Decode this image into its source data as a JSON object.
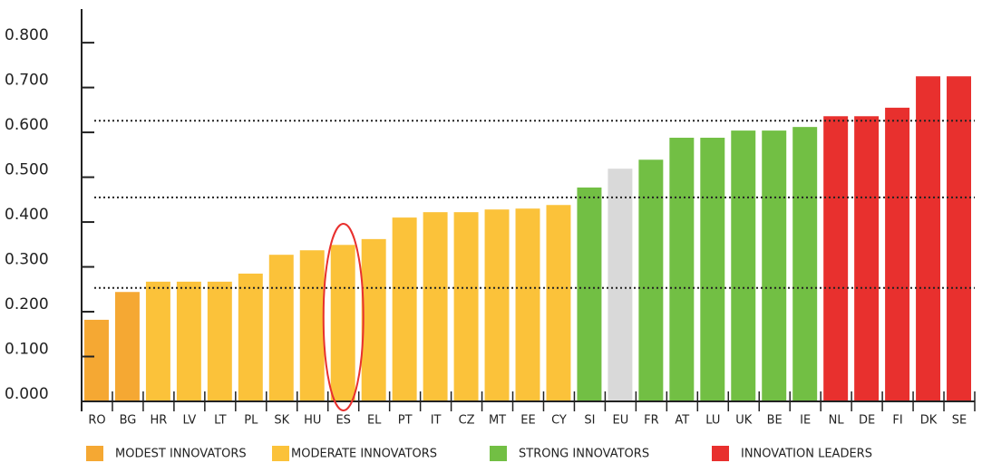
{
  "chart_data": {
    "type": "bar",
    "categories": [
      "RO",
      "BG",
      "HR",
      "LV",
      "LT",
      "PL",
      "SK",
      "HU",
      "ES",
      "EL",
      "PT",
      "IT",
      "CZ",
      "MT",
      "EE",
      "CY",
      "SI",
      "EU",
      "FR",
      "AT",
      "LU",
      "UK",
      "BE",
      "IE",
      "NL",
      "DE",
      "FI",
      "DK",
      "SE"
    ],
    "values": [
      0.182,
      0.244,
      0.267,
      0.267,
      0.267,
      0.285,
      0.327,
      0.337,
      0.349,
      0.362,
      0.41,
      0.422,
      0.422,
      0.428,
      0.43,
      0.438,
      0.477,
      0.519,
      0.539,
      0.588,
      0.588,
      0.604,
      0.604,
      0.612,
      0.636,
      0.636,
      0.655,
      0.725,
      0.725
    ],
    "colors": [
      "#f5a833",
      "#f5a833",
      "#fbc23a",
      "#fbc23a",
      "#fbc23a",
      "#fbc23a",
      "#fbc23a",
      "#fbc23a",
      "#fbc23a",
      "#fbc23a",
      "#fbc23a",
      "#fbc23a",
      "#fbc23a",
      "#fbc23a",
      "#fbc23a",
      "#fbc23a",
      "#72bf44",
      "#d9d9d9",
      "#72bf44",
      "#72bf44",
      "#72bf44",
      "#72bf44",
      "#72bf44",
      "#72bf44",
      "#e8302e",
      "#e8302e",
      "#e8302e",
      "#e8302e",
      "#e8302e"
    ],
    "ylim": [
      0,
      0.875
    ],
    "yticks": [
      {
        "value": 0,
        "label": "0.000"
      },
      {
        "value": 0.1,
        "label": "0.100"
      },
      {
        "value": 0.2,
        "label": "0.200"
      },
      {
        "value": 0.3,
        "label": "0.300"
      },
      {
        "value": 0.4,
        "label": "0.400"
      },
      {
        "value": 0.5,
        "label": "0.500"
      },
      {
        "value": 0.6,
        "label": "0.600"
      },
      {
        "value": 0.7,
        "label": "0.700"
      },
      {
        "value": 0.8,
        "label": "0.800"
      }
    ],
    "reference_lines": [
      0.626,
      0.455,
      0.253
    ],
    "highlight_category": "ES",
    "legend": [
      {
        "name": "MODEST INNOVATORS",
        "color": "#f5a833"
      },
      {
        "name": "MODERATE INNOVATORS",
        "color": "#fbc23a"
      },
      {
        "name": "STRONG INNOVATORS",
        "color": "#72bf44"
      },
      {
        "name": "INNOVATION LEADERS",
        "color": "#e8302e"
      }
    ]
  }
}
